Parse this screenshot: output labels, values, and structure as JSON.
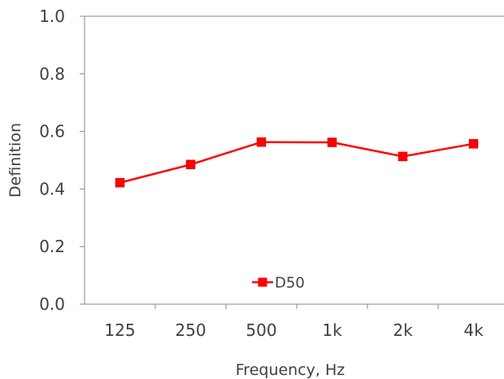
{
  "chart_data": {
    "type": "line",
    "categories": [
      "125",
      "250",
      "500",
      "1k",
      "2k",
      "4k"
    ],
    "series": [
      {
        "name": "D50",
        "values": [
          0.422,
          0.485,
          0.563,
          0.562,
          0.513,
          0.557
        ],
        "color": "#ff0000",
        "marker": "square"
      }
    ],
    "xlabel": "Frequency, Hz",
    "ylabel": "Definition",
    "ylim": [
      0.0,
      1.0
    ],
    "yticks": [
      "0.0",
      "0.2",
      "0.4",
      "0.6",
      "0.8",
      "1.0"
    ],
    "grid": false,
    "legend_position": "bottom-center-inside"
  }
}
